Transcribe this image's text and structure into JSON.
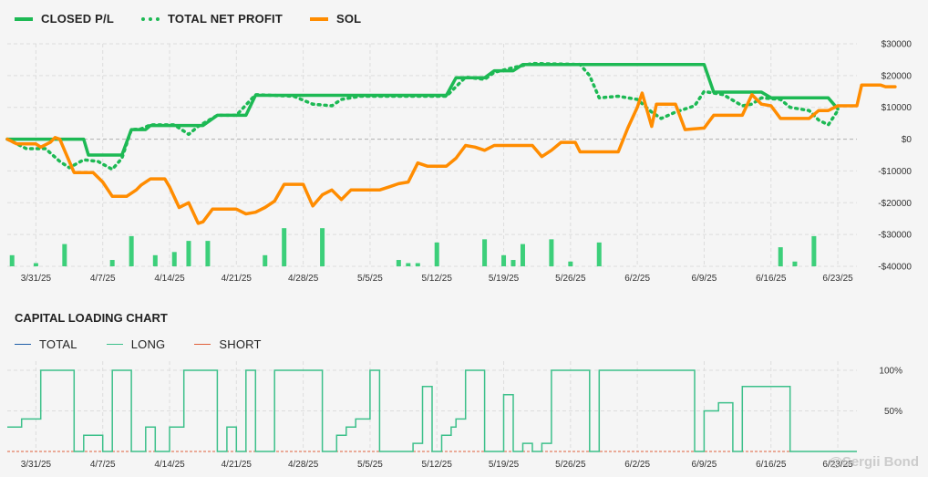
{
  "chart_data": [
    {
      "type": "line",
      "title": "",
      "legend": {
        "placement": "top-left"
      },
      "grid": true,
      "y_right": {
        "ticks": [
          30000,
          20000,
          10000,
          0,
          -10000,
          -20000,
          -30000,
          -40000
        ],
        "tick_labels": [
          "$30000",
          "$20000",
          "$10000",
          "$0",
          "-$10000",
          "-$20000",
          "-$30000",
          "-$40000"
        ],
        "ylim": [
          -40000,
          30000
        ]
      },
      "x_tick_labels": [
        "3/31/25",
        "4/7/25",
        "4/14/25",
        "4/21/25",
        "4/28/25",
        "5/5/25",
        "5/12/25",
        "5/19/25",
        "5/26/25",
        "6/2/25",
        "6/9/25",
        "6/16/25",
        "6/23/25"
      ],
      "x_range_days": [
        -3,
        86
      ],
      "series": [
        {
          "name": "CLOSED P/L",
          "style": "solid",
          "color": "#1db954",
          "points": [
            [
              -3,
              0
            ],
            [
              5,
              0
            ],
            [
              5.5,
              -5000
            ],
            [
              9,
              -5000
            ],
            [
              10,
              3000
            ],
            [
              11.5,
              3000
            ],
            [
              12,
              4300
            ],
            [
              17.5,
              4300
            ],
            [
              19,
              7500
            ],
            [
              22,
              7500
            ],
            [
              23,
              13800
            ],
            [
              43,
              13800
            ],
            [
              44,
              19300
            ],
            [
              47,
              19300
            ],
            [
              48,
              21500
            ],
            [
              50,
              21500
            ],
            [
              51,
              23500
            ],
            [
              70,
              23500
            ],
            [
              71,
              14800
            ],
            [
              76,
              14800
            ],
            [
              77,
              13000
            ],
            [
              82,
              13000
            ],
            [
              83,
              13000
            ],
            [
              84,
              9500
            ]
          ]
        },
        {
          "name": "TOTAL NET PROFIT",
          "style": "dotted",
          "color": "#1db954",
          "points": [
            [
              -3,
              0
            ],
            [
              -1,
              -3000
            ],
            [
              1,
              -3000
            ],
            [
              2.5,
              -7000
            ],
            [
              3.5,
              -9000
            ],
            [
              5,
              -6500
            ],
            [
              6.5,
              -7000
            ],
            [
              8,
              -9500
            ],
            [
              9,
              -6000
            ],
            [
              10,
              3000
            ],
            [
              11,
              3200
            ],
            [
              12,
              4500
            ],
            [
              14.5,
              4500
            ],
            [
              16,
              1500
            ],
            [
              17,
              4000
            ],
            [
              19,
              7500
            ],
            [
              21,
              7500
            ],
            [
              23,
              14000
            ],
            [
              27,
              13500
            ],
            [
              29,
              11000
            ],
            [
              31,
              10500
            ],
            [
              32,
              12500
            ],
            [
              34,
              13500
            ],
            [
              43,
              13500
            ],
            [
              45,
              19500
            ],
            [
              47,
              18800
            ],
            [
              48,
              21000
            ],
            [
              50,
              22500
            ],
            [
              52,
              23800
            ],
            [
              57,
              23500
            ],
            [
              58,
              20000
            ],
            [
              59,
              13000
            ],
            [
              61,
              13500
            ],
            [
              63,
              12500
            ],
            [
              64.5,
              8500
            ],
            [
              65.5,
              6500
            ],
            [
              67,
              8500
            ],
            [
              69,
              10500
            ],
            [
              70,
              15000
            ],
            [
              72,
              14000
            ],
            [
              74,
              10500
            ],
            [
              75,
              11000
            ],
            [
              76,
              13000
            ],
            [
              78,
              12500
            ],
            [
              79,
              10000
            ],
            [
              81,
              9000
            ],
            [
              82,
              6000
            ],
            [
              83,
              4500
            ],
            [
              84,
              9000
            ]
          ]
        },
        {
          "name": "SOL",
          "style": "solid",
          "color": "#ff8c00",
          "points": [
            [
              -3,
              0
            ],
            [
              -2,
              -1500
            ],
            [
              0,
              -1500
            ],
            [
              0.5,
              -2500
            ],
            [
              1.5,
              -1000
            ],
            [
              2,
              500
            ],
            [
              2.5,
              0
            ],
            [
              3,
              -3500
            ],
            [
              4,
              -10500
            ],
            [
              6,
              -10500
            ],
            [
              7,
              -13500
            ],
            [
              8,
              -18000
            ],
            [
              9.5,
              -18000
            ],
            [
              10.5,
              -16000
            ],
            [
              11,
              -14500
            ],
            [
              12,
              -12500
            ],
            [
              13.5,
              -12500
            ],
            [
              14,
              -15000
            ],
            [
              15,
              -21500
            ],
            [
              16,
              -20000
            ],
            [
              17,
              -26500
            ],
            [
              17.5,
              -26000
            ],
            [
              18.5,
              -22000
            ],
            [
              21,
              -22000
            ],
            [
              22,
              -23500
            ],
            [
              23,
              -23000
            ],
            [
              24,
              -21500
            ],
            [
              25,
              -19500
            ],
            [
              26,
              -14200
            ],
            [
              28,
              -14200
            ],
            [
              29,
              -21000
            ],
            [
              30,
              -17500
            ],
            [
              31,
              -16000
            ],
            [
              32,
              -19000
            ],
            [
              33,
              -16000
            ],
            [
              36,
              -16000
            ],
            [
              37,
              -15000
            ],
            [
              38,
              -14000
            ],
            [
              39,
              -13500
            ],
            [
              40,
              -7500
            ],
            [
              41,
              -8500
            ],
            [
              43,
              -8500
            ],
            [
              44,
              -6000
            ],
            [
              45,
              -2000
            ],
            [
              46,
              -2500
            ],
            [
              47,
              -3500
            ],
            [
              48,
              -2000
            ],
            [
              52,
              -2000
            ],
            [
              53,
              -5500
            ],
            [
              54,
              -3500
            ],
            [
              55,
              -1000
            ],
            [
              56.5,
              -1000
            ],
            [
              57,
              -4000
            ],
            [
              61,
              -4000
            ],
            [
              62,
              3500
            ],
            [
              63,
              10000
            ],
            [
              63.5,
              14500
            ],
            [
              64.5,
              4000
            ],
            [
              65,
              11000
            ],
            [
              67,
              11000
            ],
            [
              68,
              3000
            ],
            [
              70,
              3500
            ],
            [
              71,
              7500
            ],
            [
              74,
              7500
            ],
            [
              75,
              14000
            ],
            [
              76,
              11000
            ],
            [
              77,
              10500
            ],
            [
              78,
              6500
            ],
            [
              81,
              6500
            ],
            [
              82,
              9000
            ],
            [
              83,
              9000
            ],
            [
              84,
              10500
            ],
            [
              86,
              10500
            ],
            [
              86.5,
              17000
            ],
            [
              88.5,
              17000
            ],
            [
              89,
              16500
            ],
            [
              90,
              16500
            ]
          ]
        }
      ],
      "bars": {
        "name": "daily",
        "color": "#3ccf7a",
        "baseline": -40000,
        "values": [
          [
            -2.5,
            -36500
          ],
          [
            0,
            -39000
          ],
          [
            3,
            -33000
          ],
          [
            8,
            -38000
          ],
          [
            10,
            -30500
          ],
          [
            12.5,
            -36500
          ],
          [
            14.5,
            -35500
          ],
          [
            16,
            -32000
          ],
          [
            18,
            -32000
          ],
          [
            24,
            -36500
          ],
          [
            26,
            -28000
          ],
          [
            30,
            -28000
          ],
          [
            38,
            -38000
          ],
          [
            39,
            -39000
          ],
          [
            40,
            -39000
          ],
          [
            42,
            -32500
          ],
          [
            47,
            -31500
          ],
          [
            49,
            -36500
          ],
          [
            50,
            -38000
          ],
          [
            51,
            -33000
          ],
          [
            54,
            -31500
          ],
          [
            56,
            -38500
          ],
          [
            59,
            -32500
          ],
          [
            78,
            -34000
          ],
          [
            79.5,
            -38500
          ],
          [
            81.5,
            -30500
          ]
        ]
      }
    },
    {
      "type": "line",
      "title": "CAPITAL LOADING CHART",
      "legend": {
        "placement": "top-left"
      },
      "grid": true,
      "y_right": {
        "ticks": [
          1,
          0.5
        ],
        "tick_labels": [
          "100%",
          "50%"
        ],
        "ylim": [
          0,
          1
        ]
      },
      "x_tick_labels": [
        "3/31/25",
        "4/7/25",
        "4/14/25",
        "4/21/25",
        "4/28/25",
        "5/5/25",
        "5/12/25",
        "5/19/25",
        "5/26/25",
        "6/2/25",
        "6/9/25",
        "6/16/25",
        "6/23/25"
      ],
      "series": [
        {
          "name": "TOTAL",
          "color": "#1f5fa8",
          "values": []
        },
        {
          "name": "LONG",
          "color": "#3cc08a",
          "steps": [
            [
              -3,
              0.3
            ],
            [
              -1.5,
              0.4
            ],
            [
              0.5,
              1.0
            ],
            [
              4,
              0.0
            ],
            [
              5,
              0.2
            ],
            [
              7,
              0.0
            ],
            [
              8,
              1.0
            ],
            [
              10,
              0.0
            ],
            [
              11.5,
              0.3
            ],
            [
              12.5,
              0.0
            ],
            [
              14,
              0.3
            ],
            [
              15.5,
              1.0
            ],
            [
              19,
              0.0
            ],
            [
              20,
              0.3
            ],
            [
              21,
              0.0
            ],
            [
              22,
              1.0
            ],
            [
              23,
              0.0
            ],
            [
              25,
              1.0
            ],
            [
              30,
              0.0
            ],
            [
              31.5,
              0.2
            ],
            [
              32.5,
              0.3
            ],
            [
              33.5,
              0.4
            ],
            [
              35,
              1.0
            ],
            [
              36,
              0.0
            ],
            [
              39.5,
              0.1
            ],
            [
              40.5,
              0.8
            ],
            [
              41.5,
              0.0
            ],
            [
              42.5,
              0.2
            ],
            [
              43.5,
              0.3
            ],
            [
              44,
              0.4
            ],
            [
              45,
              1.0
            ],
            [
              47,
              0.0
            ],
            [
              49,
              0.7
            ],
            [
              50,
              0.0
            ],
            [
              51,
              0.1
            ],
            [
              52,
              0.0
            ],
            [
              53,
              0.1
            ],
            [
              54,
              1.0
            ],
            [
              58,
              0.0
            ],
            [
              59,
              1.0
            ],
            [
              69,
              0.0
            ],
            [
              70,
              0.5
            ],
            [
              71.5,
              0.6
            ],
            [
              73,
              0.0
            ],
            [
              74,
              0.8
            ],
            [
              79,
              0.0
            ]
          ]
        },
        {
          "name": "SHORT",
          "color": "#e0603a",
          "values": []
        }
      ]
    }
  ],
  "watermark": "@Sergii Bond",
  "colors": {
    "profit": "#1db954",
    "sol": "#ff8c00",
    "bars": "#3ccf7a",
    "long": "#3cc08a",
    "total": "#1f5fa8",
    "short": "#e0603a",
    "grid": "#dddddd"
  }
}
